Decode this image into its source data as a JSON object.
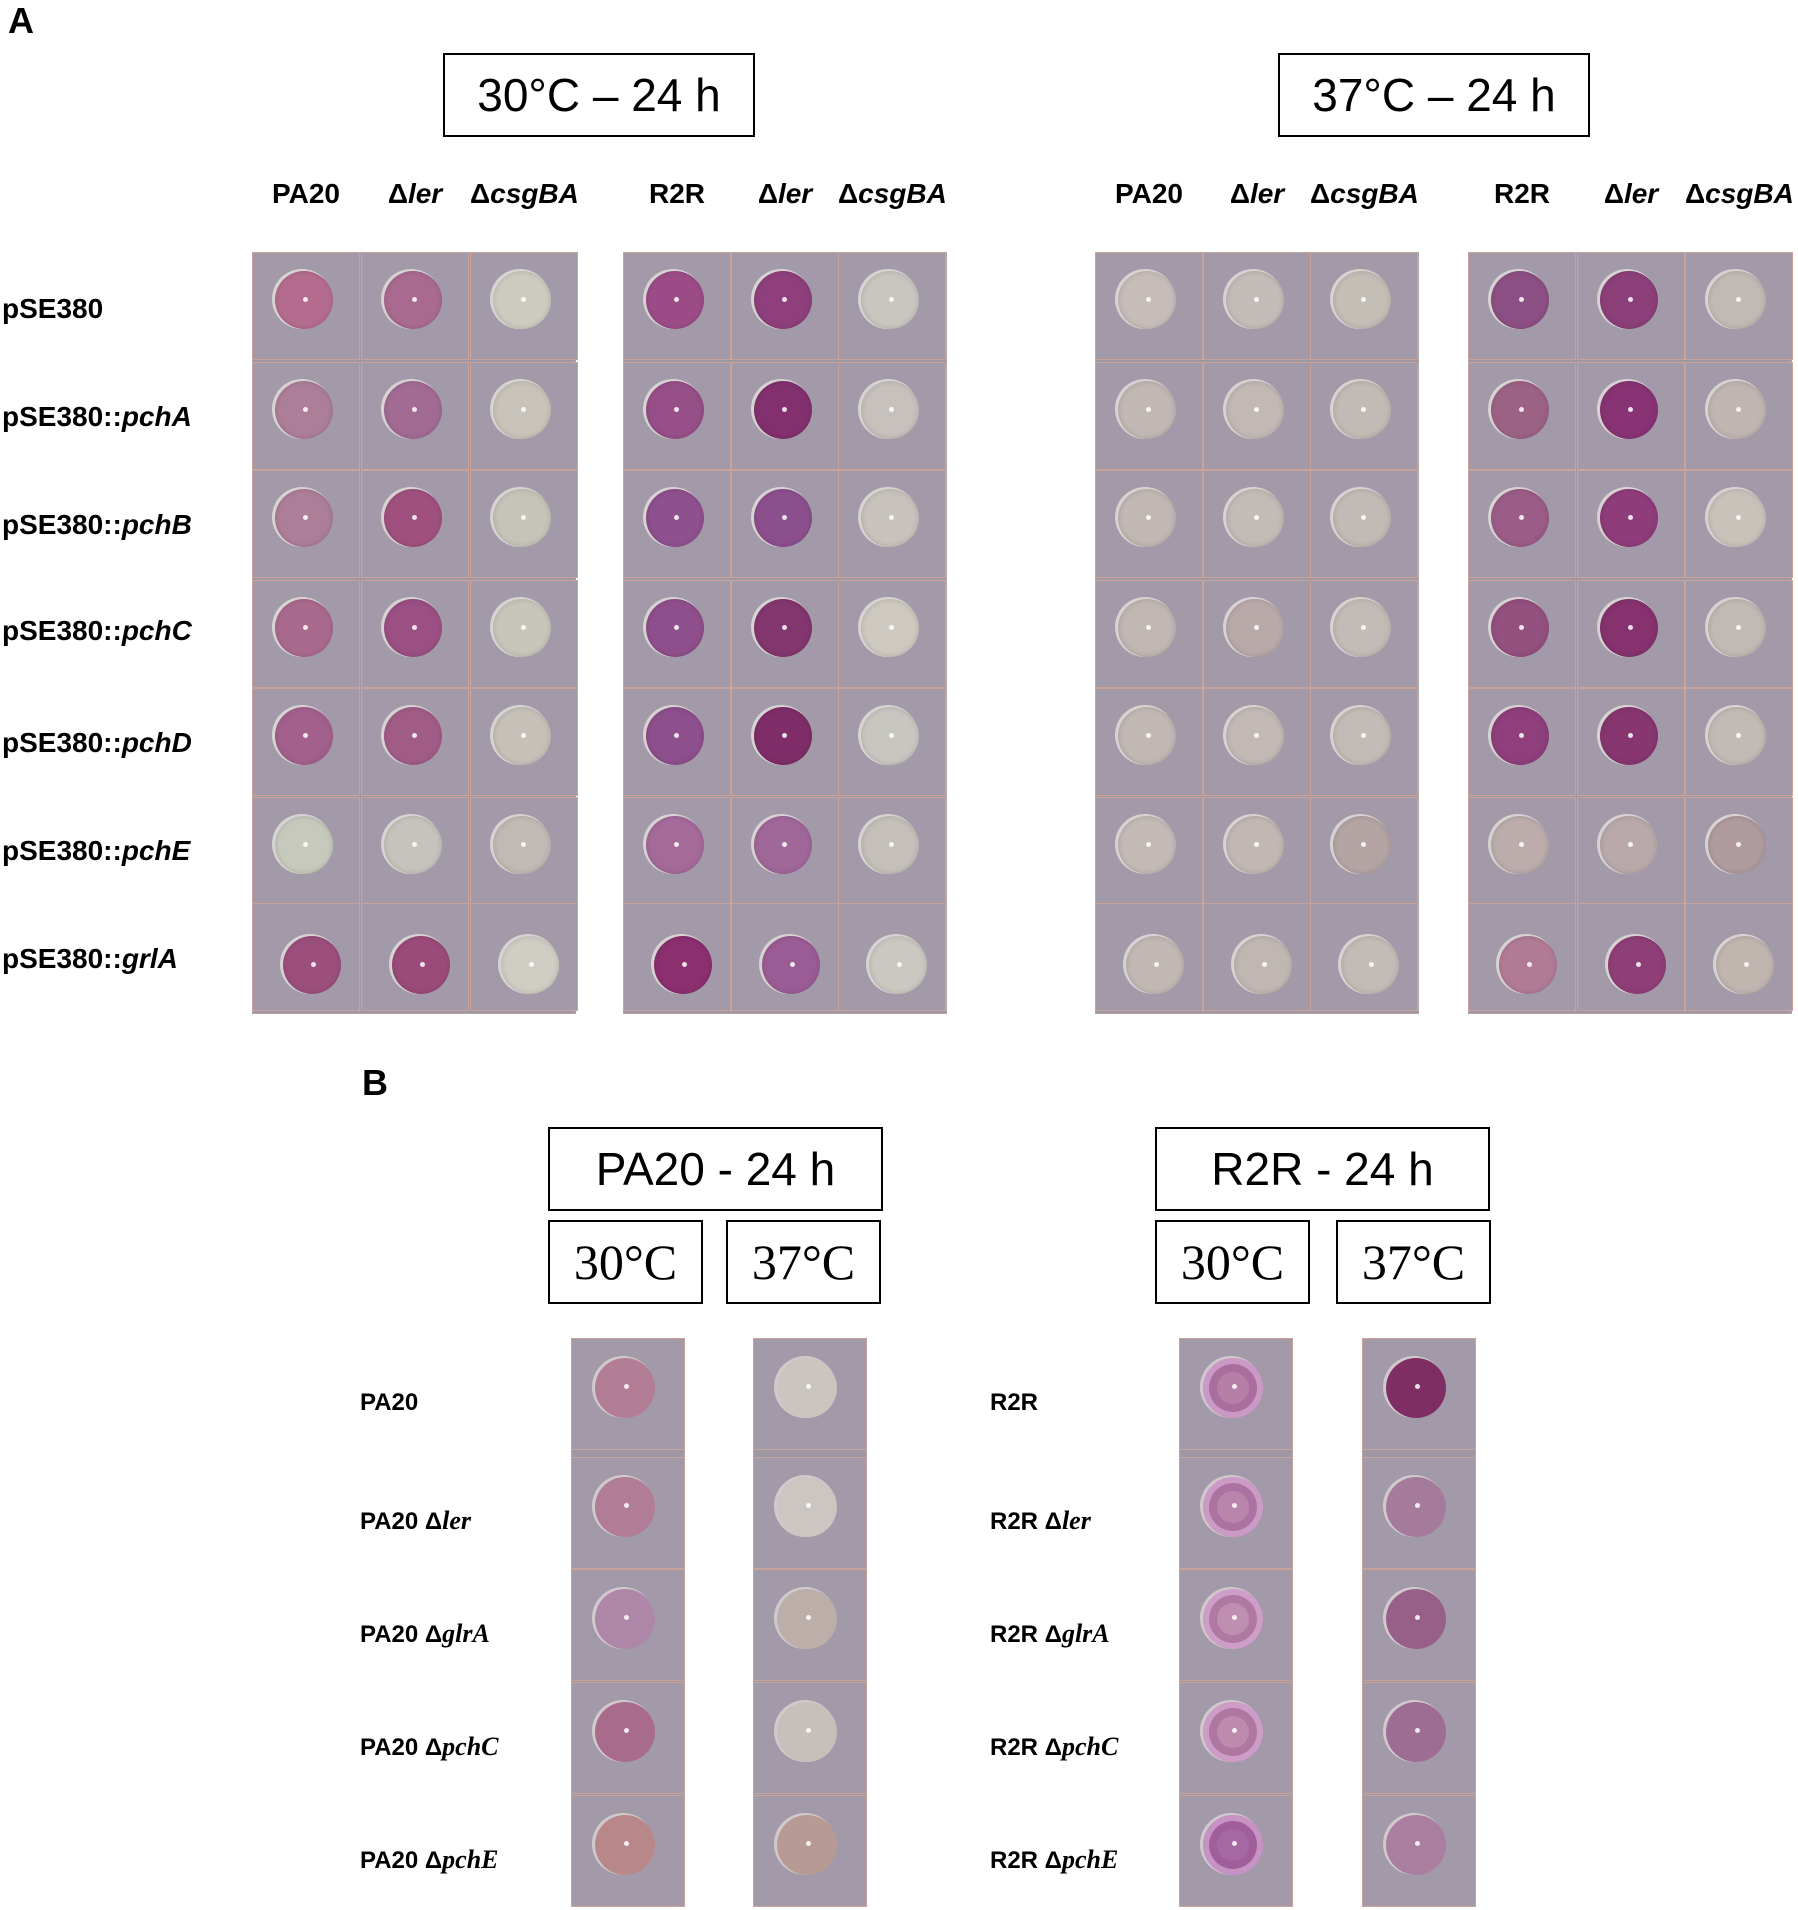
{
  "panel_a": {
    "letter": "A",
    "condition_headers": [
      "30°C – 24 h",
      "37°C – 24 h"
    ],
    "column_labels": [
      {
        "pre": "PA20",
        "gene": ""
      },
      {
        "pre": "Δ",
        "gene": "ler"
      },
      {
        "pre": "Δ",
        "gene": "csgBA"
      },
      {
        "pre": "R2R",
        "gene": ""
      },
      {
        "pre": "Δ",
        "gene": "ler"
      },
      {
        "pre": "Δ",
        "gene": "csgBA"
      }
    ],
    "row_labels": [
      {
        "pre": "pSE380",
        "gene": ""
      },
      {
        "pre": "pSE380::",
        "gene": "pchA"
      },
      {
        "pre": "pSE380::",
        "gene": "pchB"
      },
      {
        "pre": "pSE380::",
        "gene": "pchC"
      },
      {
        "pre": "pSE380::",
        "gene": "pchD"
      },
      {
        "pre": "pSE380::",
        "gene": "pchE"
      },
      {
        "pre": "pSE380::",
        "gene": "grlA"
      }
    ],
    "spot_colors": {
      "30": [
        [
          "#b46c8e",
          "#aa6a90",
          "#cdcbbf",
          "#9b4c87",
          "#8f3f7c",
          "#c9c6c0"
        ],
        [
          "#ad7e98",
          "#a16b94",
          "#c8c4bb",
          "#974f88",
          "#83306f",
          "#c6c1bd"
        ],
        [
          "#ad7e98",
          "#a0507f",
          "#c6c3b9",
          "#8f508e",
          "#8c4f8e",
          "#c7c2bc"
        ],
        [
          "#a9698d",
          "#9b4f83",
          "#c8c5bb",
          "#8f4f8c",
          "#84366f",
          "#cdc9c1"
        ],
        [
          "#a4608d",
          "#a05c87",
          "#c5c1b9",
          "#8e4f8d",
          "#7f2d68",
          "#c8c6c0"
        ],
        [
          "#c8c9bd",
          "#c6c3bc",
          "#c1b9b4",
          "#a56a9a",
          "#a06799",
          "#c4c0b9"
        ],
        [
          "#9c4f7d",
          "#9a4b7a",
          "#d0cdc4",
          "#8b2f6f",
          "#9b5c96",
          "#cbc7c1"
        ]
      ],
      "37": [
        [
          "#c6bdb9",
          "#c4bcb8",
          "#c3beb6",
          "#8c4f83",
          "#8c3f79",
          "#c1b9b4"
        ],
        [
          "#c1b7b3",
          "#c2b8b4",
          "#c2bab4",
          "#9c6284",
          "#883373",
          "#c0b5b0"
        ],
        [
          "#c1b7b3",
          "#c3bbb6",
          "#c2bab4",
          "#9b5c88",
          "#8f3c7a",
          "#c8c2bb"
        ],
        [
          "#c0b6b2",
          "#b9aaaa",
          "#c3bbb6",
          "#94507f",
          "#85326e",
          "#c1b9b4"
        ],
        [
          "#c1b8b4",
          "#c2b9b5",
          "#c3bbb6",
          "#8e3f7c",
          "#87366f",
          "#c2bab4"
        ],
        [
          "#c3bab6",
          "#c1b7b3",
          "#b5a4a4",
          "#bcadac",
          "#b9a9aa",
          "#b09b9e"
        ],
        [
          "#c2b8b3",
          "#c1b7b2",
          "#c3bbb5",
          "#b17b96",
          "#8f3f77",
          "#c1b5b0"
        ]
      ]
    }
  },
  "panel_b": {
    "letter": "B",
    "group_headers": [
      "PA20 - 24 h",
      "R2R - 24 h"
    ],
    "temp_headers": [
      "30°C",
      "37°C"
    ],
    "rows_pa20": [
      {
        "pre": "PA20",
        "gene": ""
      },
      {
        "pre": "PA20 Δ",
        "gene": "ler"
      },
      {
        "pre": "PA20 Δ",
        "gene": "glrA"
      },
      {
        "pre": "PA20 Δ",
        "gene": "pchC"
      },
      {
        "pre": "PA20 Δ",
        "gene": "pchE"
      }
    ],
    "rows_r2r": [
      {
        "pre": "R2R",
        "gene": ""
      },
      {
        "pre": "R2R Δ",
        "gene": "ler"
      },
      {
        "pre": "R2R Δ",
        "gene": "glrA"
      },
      {
        "pre": "R2R Δ",
        "gene": "pchC"
      },
      {
        "pre": "R2R Δ",
        "gene": "pchE"
      }
    ],
    "spot_colors": {
      "pa20_30": [
        "#b37d95",
        "#b07c96",
        "#ae87a8",
        "#a86b8b",
        "#b8878a"
      ],
      "pa20_37": [
        "#cbc5c0",
        "#ccc6c2",
        "#bcaea9",
        "#c7bfba",
        "#b89a95"
      ],
      "r2r_30": [
        "#b57fa8",
        "#b985ad",
        "#bf8fb1",
        "#bd8bae",
        "#a668a3"
      ],
      "r2r_37": [
        "#7f2e63",
        "#a57b9c",
        "#976088",
        "#9e6d94",
        "#aa7e9e"
      ]
    }
  }
}
